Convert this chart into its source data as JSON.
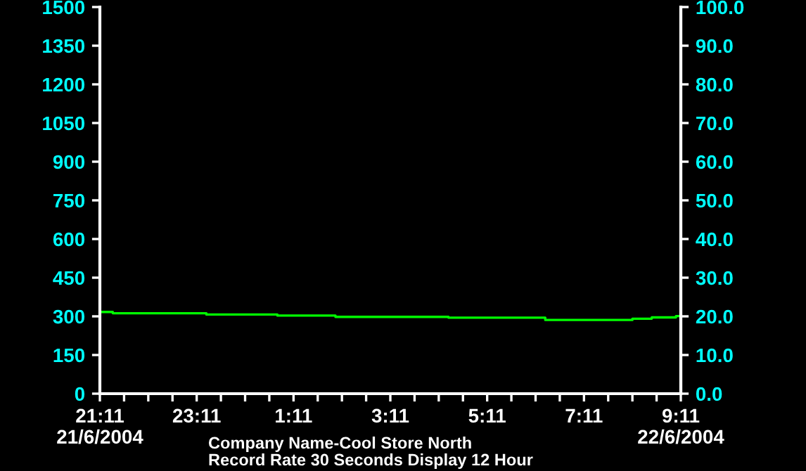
{
  "chart_data": {
    "type": "step",
    "x": [
      "2004-06-21T21:11",
      "2004-06-21T21:27",
      "2004-06-21T23:23",
      "2004-06-22T00:51",
      "2004-06-22T02:03",
      "2004-06-22T04:23",
      "2004-06-22T06:23",
      "2004-06-22T08:11",
      "2004-06-22T08:35",
      "2004-06-22T09:05",
      "2004-06-22T09:11"
    ],
    "series": [
      {
        "color": "#00ff00",
        "values": [
          317,
          312,
          307,
          303,
          298,
          295,
          286,
          291,
          296,
          301,
          301
        ]
      }
    ],
    "xlim": [
      "2004-06-21T21:11",
      "2004-06-22T09:11"
    ],
    "xticks": [
      {
        "value": "2004-06-21T21:11",
        "label": "21:11\n21/6/2004"
      },
      {
        "value": "2004-06-21T21:41",
        "label": null
      },
      {
        "value": "2004-06-21T22:11",
        "label": null
      },
      {
        "value": "2004-06-21T22:41",
        "label": null
      },
      {
        "value": "2004-06-21T23:11",
        "label": "23:11"
      },
      {
        "value": "2004-06-21T23:41",
        "label": null
      },
      {
        "value": "2004-06-22T00:11",
        "label": null
      },
      {
        "value": "2004-06-22T00:41",
        "label": null
      },
      {
        "value": "2004-06-22T01:11",
        "label": "1:11"
      },
      {
        "value": "2004-06-22T01:41",
        "label": null
      },
      {
        "value": "2004-06-22T02:11",
        "label": null
      },
      {
        "value": "2004-06-22T02:41",
        "label": null
      },
      {
        "value": "2004-06-22T03:11",
        "label": "3:11"
      },
      {
        "value": "2004-06-22T03:41",
        "label": null
      },
      {
        "value": "2004-06-22T04:11",
        "label": null
      },
      {
        "value": "2004-06-22T04:41",
        "label": null
      },
      {
        "value": "2004-06-22T05:11",
        "label": "5:11"
      },
      {
        "value": "2004-06-22T05:41",
        "label": null
      },
      {
        "value": "2004-06-22T06:11",
        "label": null
      },
      {
        "value": "2004-06-22T06:41",
        "label": null
      },
      {
        "value": "2004-06-22T07:11",
        "label": "7:11"
      },
      {
        "value": "2004-06-22T07:41",
        "label": null
      },
      {
        "value": "2004-06-22T08:11",
        "label": null
      },
      {
        "value": "2004-06-22T08:41",
        "label": null
      },
      {
        "value": "2004-06-22T09:11",
        "label": "9:11\n22/6/2004"
      }
    ],
    "ylim": [
      0,
      1500
    ],
    "yticks": [
      0,
      150,
      300,
      450,
      600,
      750,
      900,
      1050,
      1200,
      1350,
      1500
    ],
    "y2lim": [
      0,
      100
    ],
    "y2ticks": [
      {
        "value": 0,
        "label": "0.0"
      },
      {
        "value": 10,
        "label": "10.0"
      },
      {
        "value": 20,
        "label": "20.0"
      },
      {
        "value": 30,
        "label": "30.0"
      },
      {
        "value": 40,
        "label": "40.0"
      },
      {
        "value": 50,
        "label": "50.0"
      },
      {
        "value": 60,
        "label": "60.0"
      },
      {
        "value": 70,
        "label": "70.0"
      },
      {
        "value": 80,
        "label": "80.0"
      },
      {
        "value": 90,
        "label": "90.0"
      },
      {
        "value": 100,
        "label": "100.0"
      }
    ],
    "annotations": [
      "Company Name-Cool Store North",
      "Record Rate 30 Seconds Display 12 Hour"
    ],
    "grid": false
  }
}
